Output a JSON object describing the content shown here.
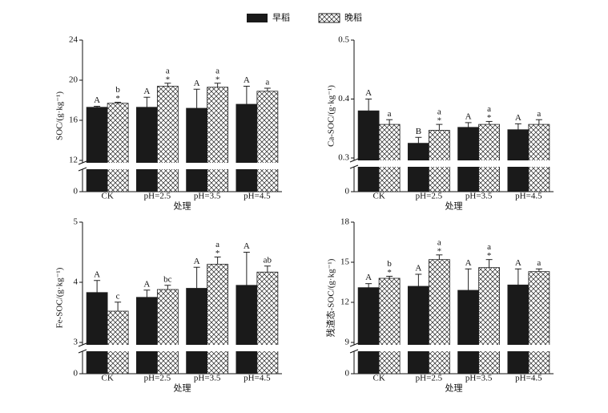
{
  "legend": [
    "早稻",
    "晚稻"
  ],
  "chart_data": [
    {
      "type": "bar",
      "ylabel": "SOC/(g·kg⁻¹)",
      "xlabel": "处理",
      "categories": [
        "CK",
        "pH=2.5",
        "pH=3.5",
        "pH=4.5"
      ],
      "ylim": [
        0,
        24
      ],
      "axis_break": 12,
      "yticks": [
        0,
        12,
        16,
        20,
        24
      ],
      "series": [
        {
          "fill": "solid",
          "color": "#1a1a1a",
          "values": [
            17.3,
            17.3,
            17.2,
            17.6
          ],
          "errors": [
            0.1,
            1.0,
            1.9,
            1.8
          ],
          "letters": [
            "A",
            "A",
            "A",
            "A"
          ],
          "stars": [
            null,
            null,
            null,
            null
          ]
        },
        {
          "fill": "crosshatch",
          "color": "#1a1a1a",
          "values": [
            17.7,
            19.4,
            19.3,
            18.9
          ],
          "errors": [
            0.1,
            0.3,
            0.4,
            0.3
          ],
          "letters": [
            "b",
            "a",
            "a",
            "a"
          ],
          "stars": [
            "*",
            "*",
            "*",
            null
          ]
        }
      ]
    },
    {
      "type": "bar",
      "ylabel": "Ca-SOC/(g·kg⁻¹)",
      "xlabel": "处理",
      "categories": [
        "CK",
        "pH=2.5",
        "pH=3.5",
        "pH=4.5"
      ],
      "ylim": [
        0,
        0.5
      ],
      "axis_break": 0.3,
      "yticks": [
        0,
        0.3,
        0.4,
        0.5
      ],
      "series": [
        {
          "fill": "solid",
          "color": "#1a1a1a",
          "values": [
            0.38,
            0.325,
            0.352,
            0.348
          ],
          "errors": [
            0.02,
            0.01,
            0.008,
            0.01
          ],
          "letters": [
            "A",
            "B",
            "A",
            "A"
          ],
          "stars": [
            null,
            null,
            null,
            null
          ]
        },
        {
          "fill": "crosshatch",
          "color": "#1a1a1a",
          "values": [
            0.357,
            0.347,
            0.357,
            0.357
          ],
          "errors": [
            0.008,
            0.01,
            0.005,
            0.008
          ],
          "letters": [
            "a",
            "a",
            "a",
            "a"
          ],
          "stars": [
            null,
            "*",
            "*",
            null
          ]
        }
      ]
    },
    {
      "type": "bar",
      "ylabel": "Fe-SOC/(g·kg⁻¹)",
      "xlabel": "处理",
      "categories": [
        "CK",
        "pH=2.5",
        "pH=3.5",
        "pH=4.5"
      ],
      "ylim": [
        0,
        5
      ],
      "axis_break": 3,
      "yticks": [
        0,
        3,
        4,
        5
      ],
      "series": [
        {
          "fill": "solid",
          "color": "#1a1a1a",
          "values": [
            3.83,
            3.75,
            3.9,
            3.95
          ],
          "errors": [
            0.2,
            0.12,
            0.35,
            0.55
          ],
          "letters": [
            "A",
            "A",
            "A",
            "A"
          ],
          "stars": [
            null,
            null,
            null,
            null
          ]
        },
        {
          "fill": "crosshatch",
          "color": "#1a1a1a",
          "values": [
            3.52,
            3.88,
            4.3,
            4.17
          ],
          "errors": [
            0.15,
            0.07,
            0.12,
            0.1
          ],
          "letters": [
            "c",
            "bc",
            "a",
            "ab"
          ],
          "stars": [
            null,
            null,
            "*",
            null
          ]
        }
      ]
    },
    {
      "type": "bar",
      "ylabel": "残渣态-SOC/(g·kg⁻¹)",
      "xlabel": "处理",
      "categories": [
        "CK",
        "pH=2.5",
        "pH=3.5",
        "pH=4.5"
      ],
      "ylim": [
        0,
        18
      ],
      "axis_break": 9,
      "yticks": [
        0,
        9,
        12,
        15,
        18
      ],
      "series": [
        {
          "fill": "solid",
          "color": "#1a1a1a",
          "values": [
            13.1,
            13.2,
            12.9,
            13.3
          ],
          "errors": [
            0.3,
            0.9,
            1.6,
            1.2
          ],
          "letters": [
            "A",
            "A",
            "A",
            "A"
          ],
          "stars": [
            null,
            null,
            null,
            null
          ]
        },
        {
          "fill": "crosshatch",
          "color": "#1a1a1a",
          "values": [
            13.8,
            15.2,
            14.6,
            14.3
          ],
          "errors": [
            0.15,
            0.35,
            0.6,
            0.2
          ],
          "letters": [
            "b",
            "a",
            "a",
            "a"
          ],
          "stars": [
            "*",
            "*",
            "*",
            null
          ]
        }
      ]
    }
  ]
}
